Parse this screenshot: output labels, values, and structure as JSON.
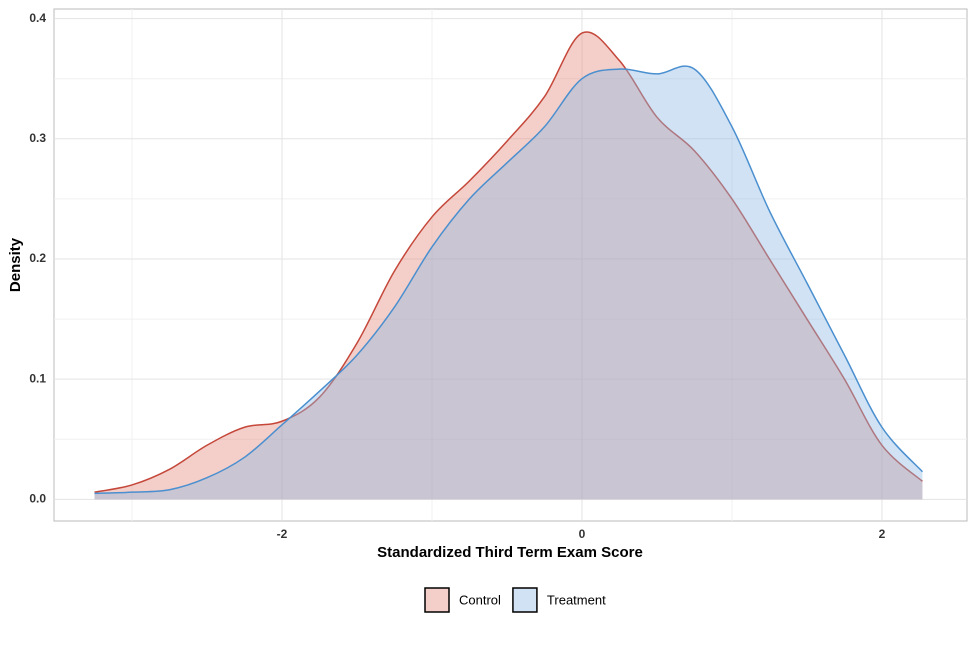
{
  "chart_data": {
    "type": "density",
    "xlabel": "Standardized Third Term Exam Score",
    "ylabel": "Density",
    "x": [
      -3.25,
      -3.0,
      -2.75,
      -2.5,
      -2.25,
      -2.0,
      -1.75,
      -1.5,
      -1.25,
      -1.0,
      -0.75,
      -0.5,
      -0.25,
      0,
      0.25,
      0.5,
      0.75,
      1.0,
      1.25,
      1.5,
      1.75,
      2.0,
      2.27
    ],
    "series": [
      {
        "name": "Control",
        "color": "#c4473a",
        "fill": "#e58a7c",
        "values": [
          0.006,
          0.012,
          0.025,
          0.045,
          0.06,
          0.065,
          0.085,
          0.13,
          0.19,
          0.235,
          0.265,
          0.298,
          0.335,
          0.388,
          0.365,
          0.318,
          0.29,
          0.25,
          0.2,
          0.15,
          0.1,
          0.045,
          0.015
        ]
      },
      {
        "name": "Treatment",
        "color": "#4a8fcf",
        "fill": "#8fbbe3",
        "values": [
          0.005,
          0.006,
          0.008,
          0.018,
          0.035,
          0.062,
          0.09,
          0.12,
          0.16,
          0.21,
          0.25,
          0.28,
          0.31,
          0.35,
          0.358,
          0.354,
          0.358,
          0.31,
          0.24,
          0.18,
          0.12,
          0.06,
          0.023
        ]
      }
    ],
    "xlim": [
      -3.52,
      2.567
    ],
    "ylim": [
      -0.018,
      0.408
    ],
    "xticks": [
      -2,
      0,
      2
    ],
    "yticks": [
      {
        "value": 0,
        "label": "0.0"
      },
      0.1,
      0.2,
      0.3,
      0.4
    ],
    "grid": true,
    "legend": "bottom"
  }
}
